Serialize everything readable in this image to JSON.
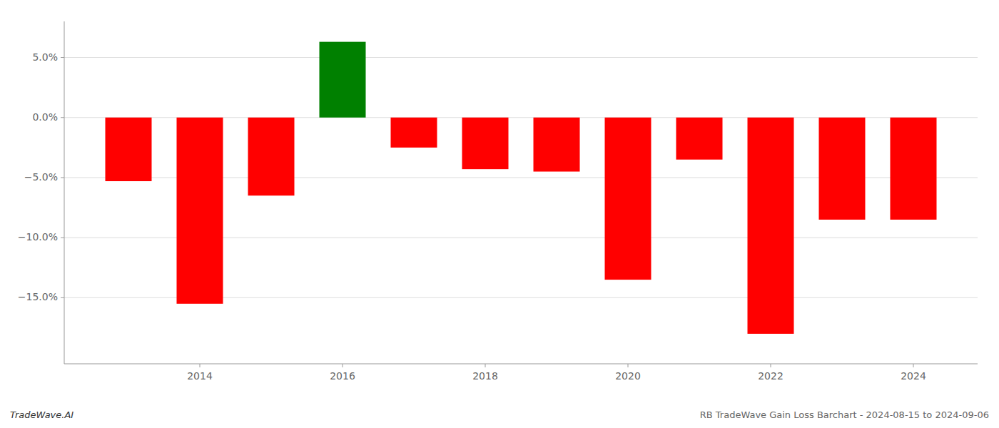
{
  "chart_data": {
    "type": "bar",
    "x": [
      2013,
      2014,
      2015,
      2016,
      2017,
      2018,
      2019,
      2020,
      2021,
      2022,
      2023,
      2024
    ],
    "values": [
      -5.3,
      -15.5,
      -6.5,
      6.3,
      -2.5,
      -4.3,
      -4.5,
      -13.5,
      -3.5,
      -18.0,
      -8.5,
      -8.5
    ],
    "colors": [
      "#ff0000",
      "#ff0000",
      "#ff0000",
      "#008000",
      "#ff0000",
      "#ff0000",
      "#ff0000",
      "#ff0000",
      "#ff0000",
      "#ff0000",
      "#ff0000",
      "#ff0000"
    ],
    "xlim": [
      2012.1,
      2024.9
    ],
    "xticks": [
      2014,
      2016,
      2018,
      2020,
      2022,
      2024
    ],
    "ylim": [
      -20.5,
      8.0
    ],
    "yticks": [
      {
        "value": -15.0,
        "label": "−15.0%"
      },
      {
        "value": -10.0,
        "label": "−10.0%"
      },
      {
        "value": -5.0,
        "label": "−5.0%"
      },
      {
        "value": 0.0,
        "label": "0.0%"
      },
      {
        "value": 5.0,
        "label": "5.0%"
      }
    ],
    "grid": true,
    "annotations": [
      "TradeWave.AI",
      "RB TradeWave Gain Loss Barchart - 2024-08-15 to 2024-09-06"
    ]
  }
}
